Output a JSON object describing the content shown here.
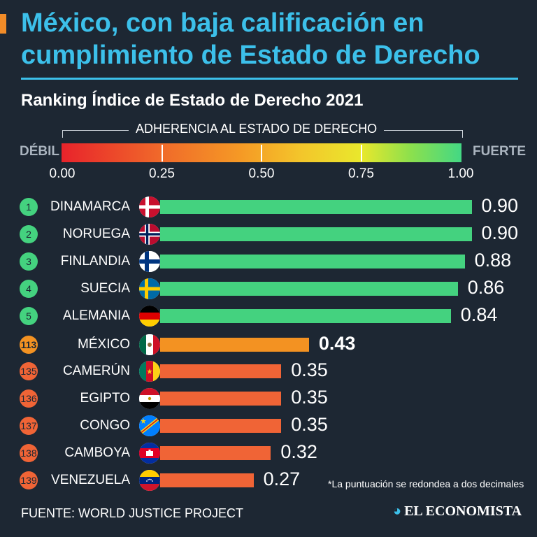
{
  "header": {
    "title_line1": "México, con baja calificación en",
    "title_line2": "cumplimiento de Estado de Derecho",
    "subtitle": "Ranking Índice de Estado de Derecho 2021"
  },
  "scale": {
    "title": "ADHERENCIA AL ESTADO DE DERECHO",
    "left_label": "DÉBIL",
    "right_label": "FUERTE",
    "ticks": [
      "0.00",
      "0.25",
      "0.50",
      "0.75",
      "1.00"
    ]
  },
  "colors": {
    "accent": "#3cc0ea",
    "top": "#44d27f",
    "mexico": "#f39222",
    "low": "#f06436",
    "background": "#1d2733"
  },
  "chart_data": {
    "type": "bar",
    "orientation": "horizontal",
    "title": "Ranking Índice de Estado de Derecho 2021",
    "xlabel": "ADHERENCIA AL ESTADO DE DERECHO",
    "xlim": [
      0,
      1
    ],
    "categories": [
      "DINAMARCA",
      "NORUEGA",
      "FINLANDIA",
      "SUECIA",
      "ALEMANIA",
      "MÉXICO",
      "CAMERÚN",
      "EGIPTO",
      "CONGO",
      "CAMBOYA",
      "VENEZUELA"
    ],
    "ranks": [
      "1",
      "2",
      "3",
      "4",
      "5",
      "113",
      "135",
      "136",
      "137",
      "138",
      "139"
    ],
    "values": [
      0.9,
      0.9,
      0.88,
      0.86,
      0.84,
      0.43,
      0.35,
      0.35,
      0.35,
      0.32,
      0.27
    ],
    "labels": [
      "0.90",
      "0.90",
      "0.88",
      "0.86",
      "0.84",
      "0.43",
      "0.35",
      "0.35",
      "0.35",
      "0.32",
      "0.27"
    ],
    "groups": [
      "top",
      "top",
      "top",
      "top",
      "top",
      "mx",
      "low",
      "low",
      "low",
      "low",
      "low"
    ],
    "flags": [
      "denmark-flag",
      "norway-flag",
      "finland-flag",
      "sweden-flag",
      "germany-flag",
      "mexico-flag",
      "cameroon-flag",
      "egypt-flag",
      "congo-flag",
      "cambodia-flag",
      "venezuela-flag"
    ]
  },
  "footer": {
    "footnote": "*La puntuación se redondea a dos decimales",
    "source": "FUENTE: WORLD JUSTICE PROJECT",
    "brand": "EL ECONOMISTA",
    "brand_mark": "◕"
  }
}
